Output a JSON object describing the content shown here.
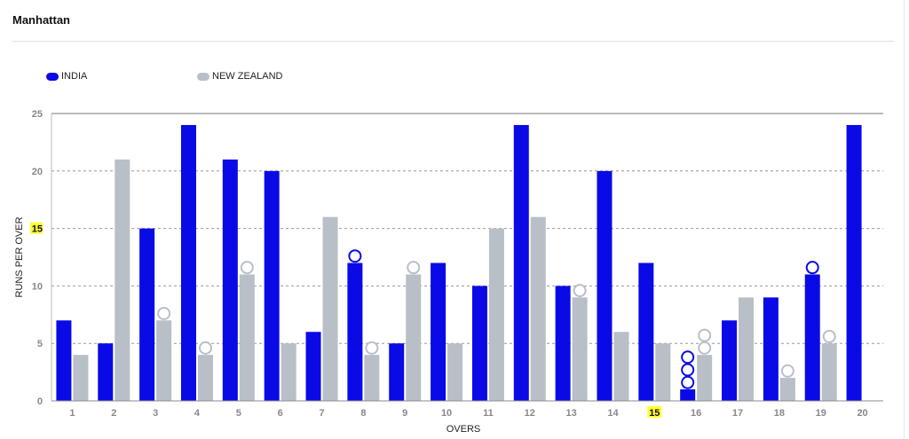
{
  "card": {
    "title": "Manhattan"
  },
  "chart_data": {
    "type": "bar",
    "xlabel": "OVERS",
    "ylabel": "RUNS PER OVER",
    "ylim": [
      0,
      25
    ],
    "yticks": [
      0,
      5,
      10,
      15,
      20,
      25
    ],
    "highlight_ytick": 15,
    "highlight_category": "15",
    "highlight_color": "#ffff33",
    "grid": "horizontal dashed",
    "legend_position": "top-left",
    "categories": [
      "1",
      "2",
      "3",
      "4",
      "5",
      "6",
      "7",
      "8",
      "9",
      "10",
      "11",
      "12",
      "13",
      "14",
      "15",
      "16",
      "17",
      "18",
      "19",
      "20"
    ],
    "series": [
      {
        "name": "INDIA",
        "color": "#0a0ae6",
        "values": [
          7,
          5,
          15,
          24,
          21,
          20,
          6,
          12,
          5,
          12,
          10,
          24,
          10,
          20,
          12,
          1,
          7,
          9,
          11,
          24
        ],
        "wickets": [
          [],
          [],
          [],
          [],
          [],
          [],
          [],
          [
            12.6
          ],
          [],
          [],
          [],
          [],
          [],
          [],
          [],
          [
            1.6,
            2.7,
            3.8
          ],
          [],
          [],
          [
            11.6
          ],
          []
        ]
      },
      {
        "name": "NEW ZEALAND",
        "color": "#b8bfc7",
        "values": [
          4,
          21,
          7,
          4,
          11,
          5,
          16,
          4,
          11,
          5,
          15,
          16,
          9,
          6,
          5,
          4,
          9,
          2,
          5,
          null
        ],
        "wickets": [
          [],
          [],
          [
            7.6
          ],
          [
            4.6
          ],
          [
            11.6
          ],
          [],
          [],
          [
            4.6
          ],
          [
            11.6
          ],
          [],
          [],
          [],
          [
            9.6
          ],
          [],
          [],
          [
            4.6,
            5.7
          ],
          [],
          [
            2.6
          ],
          [
            5.6
          ],
          []
        ]
      }
    ]
  }
}
